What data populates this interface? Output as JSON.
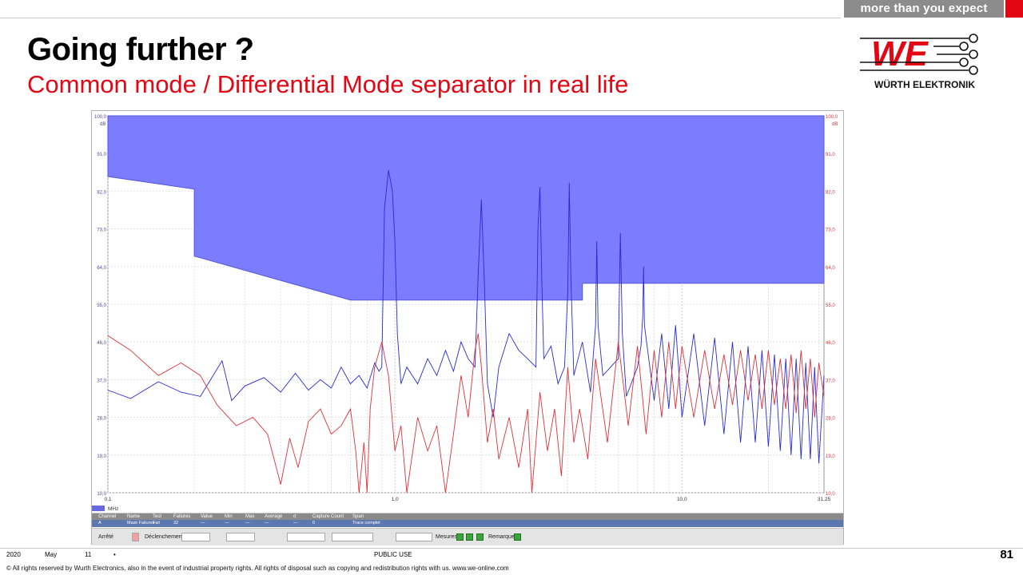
{
  "header": {
    "slogan": "more than you expect"
  },
  "title": "Going further ?",
  "subtitle": "Common mode / Differential Mode separator in real life",
  "logo": {
    "mark": "WE",
    "brand": "WÜRTH ELEKTRONIK"
  },
  "chart_data": {
    "type": "line",
    "xscale": "log",
    "xlim": [
      0.1,
      31.25
    ],
    "ylim": [
      10,
      100
    ],
    "x_ticks": [
      "0,1",
      "1,0",
      "10,0",
      "31,25"
    ],
    "y_ticks": [
      "100,0",
      "91,0",
      "82,0",
      "73,0",
      "64,0",
      "55,0",
      "46,0",
      "37,0",
      "28,0",
      "19,0",
      "10,0"
    ],
    "ylabel": "dB",
    "xunit": "MHz",
    "grid": true,
    "mask": {
      "color": "#7c7cff",
      "lower_edge": [
        [
          0.1,
          85.5
        ],
        [
          0.2,
          82.5
        ],
        [
          0.2,
          66.5
        ],
        [
          0.7,
          56
        ],
        [
          0.7,
          56
        ],
        [
          4.5,
          56
        ],
        [
          4.5,
          60
        ],
        [
          31.25,
          60
        ]
      ]
    },
    "series": [
      {
        "color": "#2a2ad6",
        "points": [
          [
            0.1,
            34.5
          ],
          [
            0.12,
            32.5
          ],
          [
            0.15,
            36.5
          ],
          [
            0.18,
            34
          ],
          [
            0.21,
            33
          ],
          [
            0.25,
            41.5
          ],
          [
            0.27,
            32
          ],
          [
            0.3,
            35.5
          ],
          [
            0.35,
            37.5
          ],
          [
            0.4,
            34
          ],
          [
            0.45,
            38.5
          ],
          [
            0.5,
            34.5
          ],
          [
            0.55,
            37
          ],
          [
            0.6,
            35
          ],
          [
            0.65,
            40
          ],
          [
            0.7,
            36
          ],
          [
            0.75,
            38
          ],
          [
            0.8,
            35
          ],
          [
            0.85,
            41
          ],
          [
            0.88,
            39
          ],
          [
            0.9,
            40
          ],
          [
            0.92,
            78
          ],
          [
            0.95,
            87
          ],
          [
            0.98,
            82
          ],
          [
            1.0,
            70
          ],
          [
            1.02,
            48
          ],
          [
            1.05,
            36
          ],
          [
            1.1,
            40
          ],
          [
            1.2,
            36
          ],
          [
            1.3,
            42
          ],
          [
            1.4,
            38
          ],
          [
            1.5,
            44
          ],
          [
            1.6,
            39
          ],
          [
            1.7,
            46
          ],
          [
            1.8,
            42
          ],
          [
            1.9,
            40
          ],
          [
            1.95,
            62
          ],
          [
            2.0,
            80
          ],
          [
            2.05,
            60
          ],
          [
            2.1,
            36
          ],
          [
            2.2,
            28
          ],
          [
            2.3,
            40
          ],
          [
            2.5,
            48
          ],
          [
            2.7,
            44
          ],
          [
            2.9,
            42
          ],
          [
            3.1,
            40
          ],
          [
            3.15,
            73
          ],
          [
            3.2,
            83
          ],
          [
            3.25,
            60
          ],
          [
            3.3,
            42
          ],
          [
            3.5,
            45
          ],
          [
            3.7,
            36
          ],
          [
            3.9,
            40
          ],
          [
            4.0,
            58
          ],
          [
            4.05,
            84
          ],
          [
            4.1,
            62
          ],
          [
            4.2,
            38
          ],
          [
            4.5,
            46
          ],
          [
            4.8,
            34
          ],
          [
            5.0,
            50
          ],
          [
            5.05,
            70
          ],
          [
            5.1,
            50
          ],
          [
            5.3,
            38
          ],
          [
            6.0,
            42
          ],
          [
            6.1,
            72
          ],
          [
            6.2,
            48
          ],
          [
            6.4,
            33
          ],
          [
            7.0,
            40
          ],
          [
            7.2,
            45
          ],
          [
            7.3,
            52
          ],
          [
            7.35,
            64
          ],
          [
            7.4,
            50
          ],
          [
            8.0,
            32
          ],
          [
            8.5,
            48
          ],
          [
            9.0,
            30
          ],
          [
            9.5,
            50
          ],
          [
            10.0,
            28
          ],
          [
            11.0,
            48
          ],
          [
            12.0,
            26
          ],
          [
            13.0,
            47
          ],
          [
            14.0,
            24
          ],
          [
            15.0,
            46
          ],
          [
            16.0,
            22
          ],
          [
            17.0,
            45
          ],
          [
            18.0,
            22
          ],
          [
            19.0,
            44
          ],
          [
            20.0,
            21
          ],
          [
            21.0,
            43
          ],
          [
            22.0,
            20
          ],
          [
            23.0,
            42
          ],
          [
            24.0,
            19
          ],
          [
            25.0,
            42
          ],
          [
            26.0,
            18
          ],
          [
            27.0,
            41
          ],
          [
            28.0,
            18
          ],
          [
            29.0,
            40
          ],
          [
            30.0,
            17
          ],
          [
            31.25,
            38
          ]
        ]
      },
      {
        "color": "#e0303a",
        "points": [
          [
            0.1,
            47.5
          ],
          [
            0.12,
            44
          ],
          [
            0.15,
            38
          ],
          [
            0.18,
            41
          ],
          [
            0.21,
            38
          ],
          [
            0.24,
            31
          ],
          [
            0.28,
            26
          ],
          [
            0.32,
            28
          ],
          [
            0.36,
            24
          ],
          [
            0.4,
            12
          ],
          [
            0.43,
            23
          ],
          [
            0.46,
            16
          ],
          [
            0.5,
            27
          ],
          [
            0.55,
            30
          ],
          [
            0.6,
            24
          ],
          [
            0.65,
            26
          ],
          [
            0.7,
            30
          ],
          [
            0.73,
            20
          ],
          [
            0.75,
            10
          ],
          [
            0.78,
            22
          ],
          [
            0.8,
            10
          ],
          [
            0.82,
            30
          ],
          [
            0.85,
            40
          ],
          [
            0.9,
            46
          ],
          [
            0.95,
            38
          ],
          [
            1.0,
            20
          ],
          [
            1.05,
            26
          ],
          [
            1.1,
            10
          ],
          [
            1.2,
            28
          ],
          [
            1.3,
            20
          ],
          [
            1.4,
            26
          ],
          [
            1.5,
            10
          ],
          [
            1.6,
            24
          ],
          [
            1.7,
            38
          ],
          [
            1.8,
            28
          ],
          [
            1.9,
            44
          ],
          [
            1.95,
            48
          ],
          [
            2.0,
            40
          ],
          [
            2.1,
            22
          ],
          [
            2.2,
            30
          ],
          [
            2.3,
            18
          ],
          [
            2.5,
            28
          ],
          [
            2.7,
            16
          ],
          [
            2.9,
            30
          ],
          [
            3.0,
            10
          ],
          [
            3.2,
            34
          ],
          [
            3.4,
            20
          ],
          [
            3.6,
            30
          ],
          [
            3.8,
            14
          ],
          [
            4.0,
            40
          ],
          [
            4.2,
            22
          ],
          [
            4.4,
            30
          ],
          [
            4.7,
            18
          ],
          [
            5.0,
            42
          ],
          [
            5.5,
            22
          ],
          [
            6.0,
            46
          ],
          [
            6.5,
            26
          ],
          [
            7.0,
            45
          ],
          [
            7.5,
            24
          ],
          [
            8.0,
            44
          ],
          [
            8.5,
            28
          ],
          [
            9.0,
            46
          ],
          [
            9.5,
            30
          ],
          [
            10.0,
            45
          ],
          [
            11.0,
            28
          ],
          [
            12.0,
            44
          ],
          [
            13.0,
            30
          ],
          [
            14.0,
            43
          ],
          [
            15.0,
            31
          ],
          [
            16.0,
            44
          ],
          [
            17.0,
            32
          ],
          [
            18.0,
            43
          ],
          [
            19.0,
            30
          ],
          [
            20.0,
            44
          ],
          [
            21.0,
            31
          ],
          [
            22.0,
            42
          ],
          [
            23.0,
            30
          ],
          [
            24.0,
            43
          ],
          [
            25.0,
            29
          ],
          [
            26.0,
            44
          ],
          [
            27.0,
            30
          ],
          [
            28.0,
            42
          ],
          [
            29.0,
            28
          ],
          [
            30.0,
            41
          ],
          [
            31.25,
            33
          ]
        ]
      }
    ]
  },
  "results_table": {
    "headers": [
      "Channel",
      "Name",
      "Test",
      "Failures",
      "Value",
      "Min",
      "Max",
      "Average",
      "σ",
      "Capture Count",
      "Span"
    ],
    "row": [
      "A",
      "Mask Failures",
      "Fail",
      "32",
      "—",
      "—",
      "—",
      "—",
      "—",
      "0",
      "Trace complet"
    ]
  },
  "controls": {
    "stop": "Arrêté",
    "trigger": "Déclenchement",
    "measures": "Mesures",
    "remarks": "Remarques"
  },
  "footer": {
    "year": "2020",
    "month": "May",
    "day": "11",
    "dot": "•",
    "classification": "PUBLIC USE",
    "page": "81",
    "copyright": "© All rights reserved by Wurth Electronics, also in the event of industrial property rights. All rights of disposal such as copying and redistribution rights with us. www.we-online.com"
  }
}
